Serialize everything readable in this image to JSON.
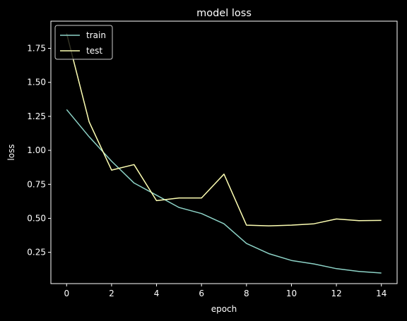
{
  "chart_data": {
    "type": "line",
    "title": "model loss",
    "xlabel": "epoch",
    "ylabel": "loss",
    "x": [
      0,
      1,
      2,
      3,
      4,
      5,
      6,
      7,
      8,
      9,
      10,
      11,
      12,
      13,
      14
    ],
    "xlim": [
      -0.7,
      14.7
    ],
    "ylim": [
      0.02,
      1.95
    ],
    "xticks": [
      0,
      2,
      4,
      6,
      8,
      10,
      12,
      14
    ],
    "xtick_labels": [
      "0",
      "2",
      "4",
      "6",
      "8",
      "10",
      "12",
      "14"
    ],
    "yticks": [
      0.25,
      0.5,
      0.75,
      1.0,
      1.25,
      1.5,
      1.75
    ],
    "ytick_labels": [
      "0.25",
      "0.50",
      "0.75",
      "1.00",
      "1.25",
      "1.50",
      "1.75"
    ],
    "grid": false,
    "legend_position": "top-left",
    "series": [
      {
        "name": "train",
        "color": "#8dd3c7",
        "values": [
          1.3,
          1.1,
          0.92,
          0.76,
          0.67,
          0.58,
          0.535,
          0.46,
          0.315,
          0.24,
          0.19,
          0.165,
          0.13,
          0.11,
          0.098
        ]
      },
      {
        "name": "test",
        "color": "#feffb3",
        "values": [
          1.86,
          1.21,
          0.855,
          0.895,
          0.63,
          0.65,
          0.65,
          0.825,
          0.45,
          0.445,
          0.45,
          0.46,
          0.495,
          0.483,
          0.485
        ]
      }
    ]
  }
}
